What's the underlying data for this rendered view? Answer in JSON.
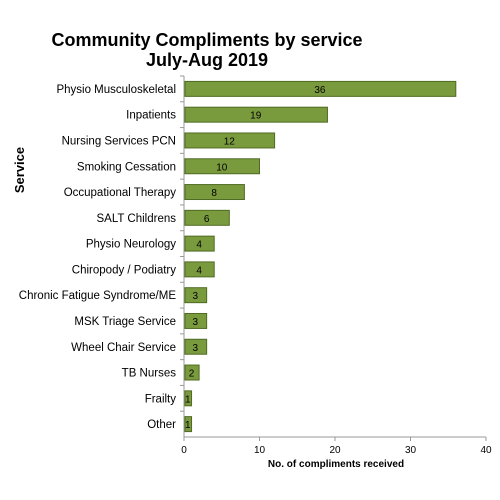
{
  "chart_data": {
    "type": "bar",
    "orientation": "horizontal",
    "title_lines": [
      "Community Compliments by service",
      "July-Aug 2019"
    ],
    "xlabel": "No. of compliments received",
    "ylabel": "Service",
    "xlim": [
      0,
      40
    ],
    "x_ticks": [
      "0",
      "10",
      "20",
      "30",
      "40"
    ],
    "categories": [
      "Physio Musculoskeletal",
      "Inpatients",
      "Nursing Services PCN",
      "Smoking Cessation",
      "Occupational Therapy",
      "SALT Childrens",
      "Physio Neurology",
      "Chiropody / Podiatry",
      "Chronic Fatigue Syndrome/ME",
      "MSK Triage Service",
      "Wheel Chair Service",
      "TB Nurses",
      "Frailty",
      "Other"
    ],
    "values": [
      36,
      19,
      12,
      10,
      8,
      6,
      4,
      4,
      3,
      3,
      3,
      2,
      1,
      1
    ],
    "bar_color": "#7a9a3e",
    "bar_edge_color": "#4f6b22",
    "grid": false,
    "legend": "none"
  }
}
